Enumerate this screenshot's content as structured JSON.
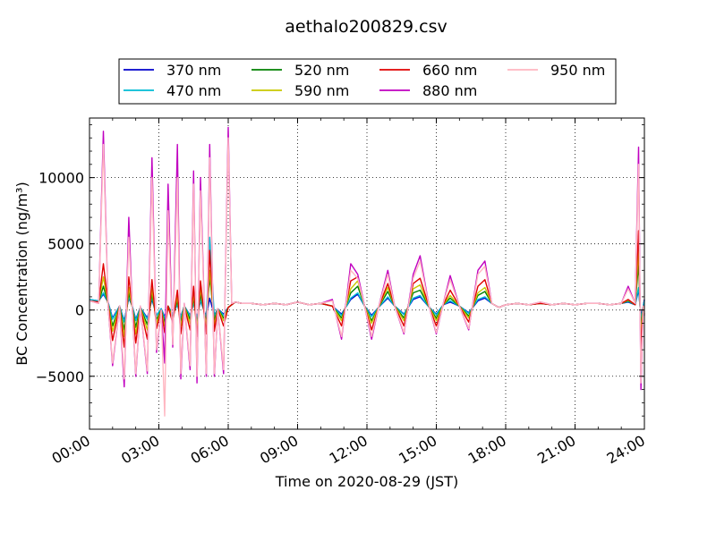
{
  "chart_data": {
    "type": "line",
    "title": "aethalo200829.csv",
    "xlabel": "Time on 2020-08-29 (JST)",
    "ylabel": "BC Concentration (ng/m³)",
    "xlim_hours": [
      0,
      24
    ],
    "ylim": [
      -9000,
      14500
    ],
    "x_unit": "hours since 2020-08-29 00:00 JST",
    "x_ticks": [
      {
        "value": 0,
        "label": "00:00"
      },
      {
        "value": 3,
        "label": "03:00"
      },
      {
        "value": 6,
        "label": "06:00"
      },
      {
        "value": 9,
        "label": "09:00"
      },
      {
        "value": 12,
        "label": "12:00"
      },
      {
        "value": 15,
        "label": "15:00"
      },
      {
        "value": 18,
        "label": "18:00"
      },
      {
        "value": 21,
        "label": "21:00"
      },
      {
        "value": 24,
        "label": "24:00"
      }
    ],
    "y_ticks": [
      {
        "value": -5000,
        "label": "−5000"
      },
      {
        "value": 0,
        "label": "0"
      },
      {
        "value": 5000,
        "label": "5000"
      },
      {
        "value": 10000,
        "label": "10000"
      }
    ],
    "grid": true,
    "legend_placement": "top-center",
    "x": [
      0.0,
      0.4,
      0.6,
      0.8,
      1.0,
      1.3,
      1.5,
      1.7,
      1.85,
      2.0,
      2.2,
      2.5,
      2.7,
      2.9,
      3.1,
      3.25,
      3.4,
      3.6,
      3.8,
      3.95,
      4.1,
      4.35,
      4.5,
      4.65,
      4.8,
      5.05,
      5.2,
      5.4,
      5.55,
      5.8,
      6.0,
      6.15,
      6.3,
      6.6,
      7.0,
      7.5,
      8.0,
      8.5,
      9.0,
      9.5,
      10.0,
      10.5,
      10.9,
      11.3,
      11.6,
      11.9,
      12.2,
      12.5,
      12.9,
      13.2,
      13.6,
      14.0,
      14.3,
      14.7,
      15.0,
      15.3,
      15.6,
      16.0,
      16.4,
      16.8,
      17.1,
      17.4,
      17.7,
      18.0,
      18.5,
      19.0,
      19.5,
      20.0,
      20.5,
      21.0,
      21.5,
      22.0,
      22.5,
      23.0,
      23.3,
      23.6,
      23.75,
      23.85,
      23.95,
      24.0
    ],
    "series": [
      {
        "name": "370 nm",
        "color": "#0000cc",
        "values": [
          800,
          700,
          1200,
          600,
          -600,
          300,
          -800,
          900,
          300,
          -700,
          200,
          -600,
          800,
          -400,
          100,
          -500,
          300,
          -300,
          400,
          -500,
          300,
          -400,
          500,
          -600,
          700,
          -500,
          900,
          -400,
          100,
          -300,
          200,
          400,
          600,
          500,
          500,
          400,
          500,
          400,
          600,
          400,
          500,
          300,
          -300,
          800,
          1200,
          300,
          -400,
          200,
          900,
          300,
          -300,
          800,
          1000,
          200,
          -300,
          400,
          600,
          300,
          -200,
          700,
          900,
          500,
          200,
          400,
          500,
          400,
          500,
          400,
          500,
          400,
          500,
          500,
          400,
          500,
          600,
          400,
          1500,
          -500,
          300,
          800
        ]
      },
      {
        "name": "470 nm",
        "color": "#00bcd4",
        "values": [
          800,
          700,
          1300,
          600,
          -700,
          300,
          -900,
          1000,
          300,
          -800,
          200,
          -700,
          900,
          -400,
          100,
          -600,
          300,
          -300,
          450,
          -550,
          300,
          -450,
          550,
          -650,
          800,
          -600,
          5500,
          -500,
          100,
          -400,
          200,
          400,
          600,
          500,
          500,
          400,
          500,
          400,
          600,
          400,
          500,
          300,
          -400,
          900,
          1300,
          300,
          -500,
          200,
          1000,
          300,
          -350,
          900,
          1100,
          200,
          -350,
          400,
          700,
          300,
          -250,
          800,
          1000,
          500,
          200,
          400,
          500,
          400,
          500,
          400,
          500,
          400,
          500,
          500,
          400,
          500,
          650,
          400,
          1700,
          -700,
          300,
          700
        ]
      },
      {
        "name": "520 nm",
        "color": "#008000",
        "values": [
          700,
          600,
          1800,
          500,
          -1200,
          300,
          -1500,
          1300,
          200,
          -1300,
          200,
          -1100,
          1200,
          -700,
          0,
          -900,
          300,
          -500,
          700,
          -900,
          300,
          -700,
          900,
          -1000,
          1200,
          -900,
          2500,
          -800,
          100,
          -600,
          200,
          400,
          600,
          500,
          500,
          400,
          500,
          400,
          600,
          400,
          500,
          300,
          -600,
          1300,
          1800,
          300,
          -800,
          200,
          1400,
          300,
          -600,
          1300,
          1500,
          200,
          -600,
          400,
          900,
          300,
          -450,
          1100,
          1400,
          500,
          200,
          400,
          500,
          400,
          500,
          400,
          500,
          400,
          500,
          500,
          400,
          500,
          700,
          400,
          3500,
          -1500,
          300,
          200
        ]
      },
      {
        "name": "590 nm",
        "color": "#c8c800",
        "values": [
          700,
          600,
          2500,
          500,
          -1600,
          300,
          -2000,
          1700,
          200,
          -1800,
          200,
          -1500,
          1600,
          -1000,
          0,
          -1200,
          300,
          -700,
          1000,
          -1200,
          300,
          -1000,
          1200,
          -1400,
          1600,
          -1200,
          3000,
          -1100,
          100,
          -800,
          200,
          400,
          600,
          500,
          500,
          400,
          500,
          400,
          600,
          400,
          500,
          300,
          -800,
          1600,
          2200,
          300,
          -1000,
          200,
          1700,
          300,
          -800,
          1600,
          1900,
          200,
          -800,
          400,
          1100,
          300,
          -600,
          1300,
          1700,
          500,
          200,
          400,
          500,
          400,
          500,
          400,
          500,
          400,
          500,
          500,
          400,
          500,
          750,
          400,
          4500,
          -2000,
          300,
          0
        ]
      },
      {
        "name": "660 nm",
        "color": "#e00000",
        "values": [
          700,
          600,
          3500,
          500,
          -2300,
          300,
          -2800,
          2500,
          200,
          -2500,
          200,
          -2200,
          2300,
          -1400,
          0,
          -1700,
          300,
          -1000,
          1500,
          -1800,
          300,
          -1500,
          1800,
          -2000,
          2200,
          -1800,
          4500,
          -1600,
          100,
          -1200,
          200,
          400,
          600,
          500,
          500,
          400,
          500,
          400,
          600,
          400,
          500,
          300,
          -1200,
          2200,
          2500,
          300,
          -1500,
          200,
          2000,
          300,
          -1200,
          2000,
          2400,
          200,
          -1200,
          400,
          1500,
          300,
          -900,
          1800,
          2300,
          500,
          200,
          400,
          500,
          400,
          500,
          400,
          500,
          400,
          500,
          500,
          400,
          500,
          800,
          400,
          6000,
          -3000,
          300,
          -300
        ]
      },
      {
        "name": "880 nm",
        "color": "#c000c0",
        "values": [
          700,
          500,
          13500,
          400,
          -4200,
          300,
          -5800,
          7000,
          100,
          -5000,
          300,
          -4800,
          11500,
          -3200,
          0,
          -4000,
          9500,
          -2800,
          12500,
          -5200,
          500,
          -4500,
          10500,
          -5500,
          10000,
          -5000,
          12500,
          -5000,
          100,
          -4800,
          13800,
          500,
          600,
          500,
          500,
          400,
          500,
          400,
          600,
          400,
          500,
          800,
          -2200,
          3500,
          2700,
          300,
          -2200,
          200,
          3000,
          300,
          -1800,
          2700,
          4100,
          200,
          -1800,
          500,
          2600,
          300,
          -1500,
          3000,
          3700,
          500,
          200,
          400,
          500,
          400,
          600,
          400,
          500,
          400,
          500,
          500,
          400,
          500,
          1800,
          500,
          12300,
          -6000,
          300,
          -400
        ]
      },
      {
        "name": "950 nm",
        "color": "#ffb6c1",
        "values": [
          700,
          500,
          12500,
          400,
          -4000,
          300,
          -5200,
          5500,
          100,
          -4800,
          300,
          -4600,
          10000,
          -3000,
          0,
          -8000,
          7500,
          -2600,
          10000,
          -4800,
          500,
          -4200,
          9500,
          -5000,
          9000,
          -4800,
          11500,
          -4800,
          100,
          -4500,
          13000,
          500,
          600,
          500,
          500,
          400,
          500,
          400,
          600,
          400,
          500,
          700,
          -2000,
          3000,
          2400,
          300,
          -2000,
          200,
          2700,
          300,
          -1700,
          2400,
          3700,
          200,
          -1700,
          500,
          2300,
          300,
          -1400,
          2700,
          3300,
          500,
          200,
          400,
          500,
          400,
          600,
          400,
          500,
          400,
          500,
          500,
          400,
          500,
          1600,
          500,
          11000,
          -5500,
          300,
          -400
        ]
      }
    ]
  }
}
